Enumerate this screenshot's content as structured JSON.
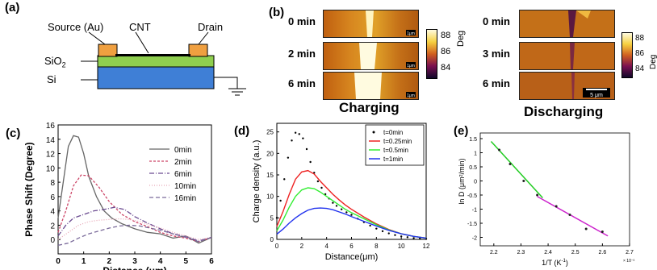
{
  "panel_a": {
    "label": "(a)",
    "source": "Source (Au)",
    "cnt": "CNT",
    "drain": "Drain",
    "sio2": "SiO",
    "sio2_sub": "2",
    "si": "Si"
  },
  "panel_b": {
    "label": "(b)",
    "charging_title": "Charging",
    "discharging_title": "Discharging",
    "charging_times": [
      "0 min",
      "2 min",
      "6 min"
    ],
    "discharging_times": [
      "0 min",
      "3 min",
      "6 min"
    ],
    "scalebar_small": "1μm",
    "scalebar": "5 μm",
    "colorbar_ticks_left": [
      "88",
      "86",
      "84"
    ],
    "colorbar_ticks_right": [
      "88",
      "86",
      "84"
    ],
    "colorbar_unit": "Deg"
  },
  "chart_data": [
    {
      "panel": "(c)",
      "type": "line",
      "xlabel": "Distance (μm)",
      "ylabel": "Phase Shift (Degree)",
      "xlim": [
        0,
        6
      ],
      "ylim": [
        -2,
        16
      ],
      "xticks": [
        "0",
        "1",
        "2",
        "3",
        "4",
        "5",
        "6"
      ],
      "yticks": [
        "16",
        "14",
        "12",
        "10",
        "8",
        "6",
        "4",
        "2",
        "0"
      ],
      "series": [
        {
          "name": "0min",
          "color": "#666666",
          "dash": "none",
          "x": [
            0,
            0.2,
            0.4,
            0.6,
            0.8,
            1.0,
            1.2,
            1.5,
            1.8,
            2.1,
            2.5,
            3,
            3.5,
            4,
            4.5,
            5,
            5.5,
            6
          ],
          "y": [
            3,
            8,
            13,
            14.5,
            14.3,
            12,
            8.8,
            6,
            4,
            3,
            2.2,
            1.5,
            1,
            0.8,
            0.2,
            0.5,
            -0.5,
            0.3
          ]
        },
        {
          "name": "2min",
          "color": "#cc4466",
          "dash": "3,2",
          "x": [
            0,
            0.3,
            0.6,
            0.9,
            1.2,
            1.6,
            2,
            2.5,
            3,
            3.5,
            4,
            4.5,
            5,
            5.5,
            6
          ],
          "y": [
            1,
            4,
            7.5,
            9,
            8.9,
            7.3,
            5.3,
            3.5,
            2.5,
            1.8,
            1,
            0.5,
            0.2,
            -0.3,
            0.3
          ]
        },
        {
          "name": "6min",
          "color": "#6a4a90",
          "dash": "6,2,1,2",
          "x": [
            0,
            0.3,
            0.6,
            1,
            1.4,
            1.8,
            2.2,
            2.6,
            3,
            3.5,
            4,
            4.5,
            5,
            5.5,
            6
          ],
          "y": [
            0.5,
            2,
            3,
            3.5,
            4,
            4.2,
            4.5,
            4.2,
            3.2,
            2.3,
            1.5,
            0.8,
            0.4,
            -0.2,
            0.3
          ]
        },
        {
          "name": "10min",
          "color": "#e8a8b8",
          "dash": "1,2",
          "x": [
            0,
            0.4,
            0.8,
            1.2,
            1.6,
            2,
            2.4,
            2.8,
            3.2,
            3.6,
            4,
            4.5,
            5,
            5.5,
            6
          ],
          "y": [
            0,
            1,
            2,
            2.5,
            2.7,
            2.8,
            2.9,
            2.8,
            2.5,
            2,
            1.6,
            1,
            0.5,
            0,
            0.3
          ]
        },
        {
          "name": "16min",
          "color": "#7a6a9a",
          "dash": "5,3",
          "x": [
            0,
            0.4,
            0.8,
            1.2,
            1.6,
            2,
            2.4,
            2.8,
            3.2,
            3.6,
            4,
            4.5,
            5,
            5.5,
            6
          ],
          "y": [
            -0.8,
            -0.5,
            0.2,
            0.8,
            1.2,
            1.6,
            1.9,
            2,
            1.9,
            1.6,
            1.3,
            0.8,
            0.3,
            -0.3,
            0.3
          ]
        }
      ]
    },
    {
      "panel": "(d)",
      "type": "scatter",
      "xlabel": "Distance(μm)",
      "ylabel": "Charge density (a.u.)",
      "xlim": [
        0,
        12
      ],
      "ylim": [
        0,
        27
      ],
      "xticks": [
        "0",
        "2",
        "4",
        "6",
        "8",
        "10",
        "12"
      ],
      "yticks": [
        "0",
        "5",
        "10",
        "15",
        "20",
        "25"
      ],
      "series": [
        {
          "name": "t=0min",
          "color": "#000000",
          "style": "dots",
          "x": [
            0,
            0.3,
            0.6,
            0.9,
            1.2,
            1.5,
            1.8,
            2.1,
            2.4,
            2.7,
            3.0,
            3.3,
            3.6,
            3.9,
            4.2,
            4.5,
            4.8,
            5.2,
            5.6,
            6,
            6.5,
            7,
            7.5,
            8,
            8.5,
            9,
            9.5,
            10,
            10.5,
            11,
            11.5,
            12
          ],
          "y": [
            5,
            9,
            14,
            19,
            23,
            24.8,
            24.5,
            23.5,
            21,
            18,
            15.5,
            13.5,
            12,
            10.5,
            9.5,
            8.5,
            7.8,
            7,
            6.3,
            5.7,
            4.8,
            4,
            3.2,
            2.5,
            1.9,
            1.4,
            1,
            0.7,
            0.5,
            0.3,
            0.2,
            0.1
          ]
        },
        {
          "name": "t=0.25min",
          "color": "#ee2222",
          "style": "line",
          "x": [
            0,
            0.5,
            1,
            1.5,
            2,
            2.5,
            3,
            3.5,
            4,
            4.5,
            5,
            5.5,
            6,
            7,
            8,
            9,
            10,
            11,
            12
          ],
          "y": [
            3,
            6.5,
            10.5,
            14,
            15.7,
            16,
            15.2,
            13.5,
            12,
            10.5,
            9.2,
            8,
            7,
            5.2,
            3.6,
            2.3,
            1.3,
            0.7,
            0.3
          ]
        },
        {
          "name": "t=0.5min",
          "color": "#33ee33",
          "style": "line",
          "x": [
            0,
            0.5,
            1,
            1.5,
            2,
            2.5,
            3,
            3.5,
            4,
            4.5,
            5,
            5.5,
            6,
            7,
            8,
            9,
            10,
            11,
            12
          ],
          "y": [
            2,
            4.5,
            7.5,
            10,
            11.5,
            12,
            11.8,
            11,
            10,
            9,
            8,
            7,
            6.2,
            4.8,
            3.4,
            2.2,
            1.3,
            0.7,
            0.3
          ]
        },
        {
          "name": "t=1min",
          "color": "#2233ee",
          "style": "line",
          "x": [
            0,
            0.5,
            1,
            1.5,
            2,
            2.5,
            3,
            3.5,
            4,
            4.5,
            5,
            5.5,
            6,
            7,
            8,
            9,
            10,
            11,
            12
          ],
          "y": [
            1.2,
            2.4,
            3.8,
            5,
            6,
            6.8,
            7.2,
            7.3,
            7.2,
            6.9,
            6.4,
            5.9,
            5.3,
            4.2,
            3.1,
            2.1,
            1.3,
            0.7,
            0.3
          ]
        }
      ]
    },
    {
      "panel": "(e)",
      "type": "scatter",
      "xlabel": "1/T (K",
      "xlabel_sup": "-1",
      "xlabel_end": ")",
      "ylabel": "ln D (μm²/min)",
      "x_multiplier": "× 10⁻³",
      "xlim": [
        2.15,
        2.7
      ],
      "ylim": [
        -2.3,
        1.7
      ],
      "xticks": [
        "2.2",
        "2.3",
        "2.4",
        "2.5",
        "2.6",
        "2.7"
      ],
      "yticks": [
        "1.5",
        "1",
        "0.5",
        "0",
        "-0.5",
        "-1",
        "-1.5",
        "-2"
      ],
      "points": {
        "x": [
          2.22,
          2.26,
          2.31,
          2.36,
          2.43,
          2.48,
          2.54,
          2.6
        ],
        "y": [
          1.1,
          0.6,
          0.0,
          -0.5,
          -0.9,
          -1.2,
          -1.7,
          -1.8
        ]
      },
      "fit_lines": [
        {
          "color": "#22cc22",
          "x": [
            2.19,
            2.38
          ],
          "y": [
            1.4,
            -0.6
          ]
        },
        {
          "color": "#cc22cc",
          "x": [
            2.36,
            2.62
          ],
          "y": [
            -0.55,
            -1.95
          ]
        }
      ]
    }
  ]
}
